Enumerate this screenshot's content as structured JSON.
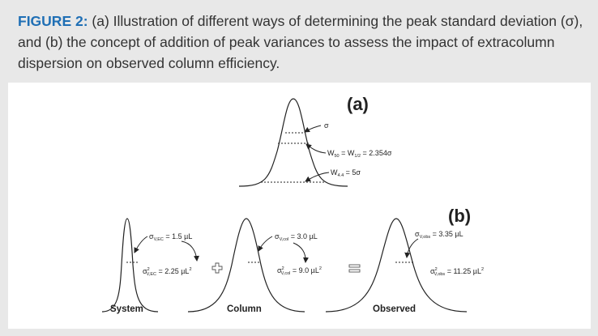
{
  "caption": {
    "label": "FIGURE 2:",
    "text": " (a) Illustration of different ways of determining the peak standard deviation (σ), and (b) the concept of addition of peak variances to assess the impact of extracolumn dispersion on observed column efficiency."
  },
  "figure": {
    "a": {
      "letter": "(a)",
      "sigma": "σ",
      "w50_main": "W",
      "w50_sub": "50",
      "w50_eq": " = W",
      "w50_sub2": "1/2",
      "w50_val": " = 2.354σ",
      "w44_main": "W",
      "w44_sub": "4.4",
      "w44_val": " = 5σ"
    },
    "b": {
      "letter": "(b)",
      "system": {
        "label": "System",
        "sigma_main": "σ",
        "sigma_sub": "V,EC",
        "sigma_val": " = 1.5 µL",
        "var_main": "σ",
        "var_sup": "2",
        "var_sub": "V,EC",
        "var_val": " = 2.25 µL",
        "var_unit_sup": "2"
      },
      "column": {
        "label": "Column",
        "sigma_main": "σ",
        "sigma_sub": "V,col",
        "sigma_val": " = 3.0 µL",
        "var_main": "σ",
        "var_sup": "2",
        "var_sub": "V,col",
        "var_val": " = 9.0 µL",
        "var_unit_sup": "2"
      },
      "observed": {
        "label": "Observed",
        "sigma_main": "σ",
        "sigma_sub": "V,obs",
        "sigma_val": " = 3.35 µL",
        "var_main": "σ",
        "var_sup": "2",
        "var_sub": "V,obs",
        "var_val": " = 11.25 µL",
        "var_unit_sup": "2"
      }
    }
  }
}
